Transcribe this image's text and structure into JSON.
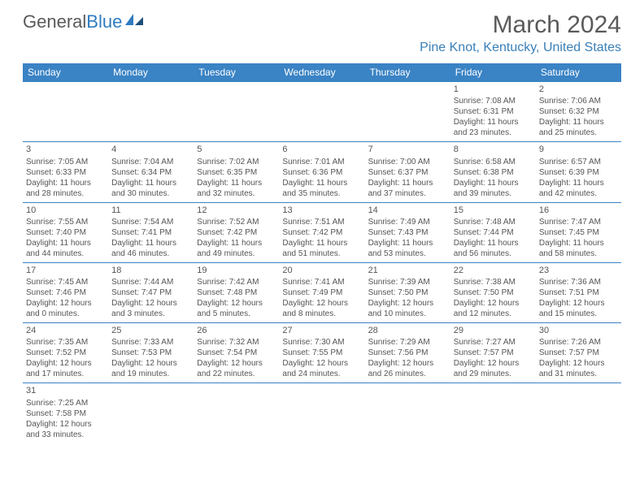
{
  "logo": {
    "text1": "General",
    "text2": "Blue"
  },
  "title": {
    "month": "March 2024",
    "location": "Pine Knot, Kentucky, United States"
  },
  "dow": [
    "Sunday",
    "Monday",
    "Tuesday",
    "Wednesday",
    "Thursday",
    "Friday",
    "Saturday"
  ],
  "colors": {
    "header_bg": "#3a83c4",
    "header_text": "#ffffff",
    "border": "#3a83c4",
    "body_text": "#555555",
    "accent": "#2f7bbf"
  },
  "weeks": [
    [
      null,
      null,
      null,
      null,
      null,
      {
        "d": "1",
        "sr": "Sunrise: 7:08 AM",
        "ss": "Sunset: 6:31 PM",
        "dl1": "Daylight: 11 hours",
        "dl2": "and 23 minutes."
      },
      {
        "d": "2",
        "sr": "Sunrise: 7:06 AM",
        "ss": "Sunset: 6:32 PM",
        "dl1": "Daylight: 11 hours",
        "dl2": "and 25 minutes."
      }
    ],
    [
      {
        "d": "3",
        "sr": "Sunrise: 7:05 AM",
        "ss": "Sunset: 6:33 PM",
        "dl1": "Daylight: 11 hours",
        "dl2": "and 28 minutes."
      },
      {
        "d": "4",
        "sr": "Sunrise: 7:04 AM",
        "ss": "Sunset: 6:34 PM",
        "dl1": "Daylight: 11 hours",
        "dl2": "and 30 minutes."
      },
      {
        "d": "5",
        "sr": "Sunrise: 7:02 AM",
        "ss": "Sunset: 6:35 PM",
        "dl1": "Daylight: 11 hours",
        "dl2": "and 32 minutes."
      },
      {
        "d": "6",
        "sr": "Sunrise: 7:01 AM",
        "ss": "Sunset: 6:36 PM",
        "dl1": "Daylight: 11 hours",
        "dl2": "and 35 minutes."
      },
      {
        "d": "7",
        "sr": "Sunrise: 7:00 AM",
        "ss": "Sunset: 6:37 PM",
        "dl1": "Daylight: 11 hours",
        "dl2": "and 37 minutes."
      },
      {
        "d": "8",
        "sr": "Sunrise: 6:58 AM",
        "ss": "Sunset: 6:38 PM",
        "dl1": "Daylight: 11 hours",
        "dl2": "and 39 minutes."
      },
      {
        "d": "9",
        "sr": "Sunrise: 6:57 AM",
        "ss": "Sunset: 6:39 PM",
        "dl1": "Daylight: 11 hours",
        "dl2": "and 42 minutes."
      }
    ],
    [
      {
        "d": "10",
        "sr": "Sunrise: 7:55 AM",
        "ss": "Sunset: 7:40 PM",
        "dl1": "Daylight: 11 hours",
        "dl2": "and 44 minutes."
      },
      {
        "d": "11",
        "sr": "Sunrise: 7:54 AM",
        "ss": "Sunset: 7:41 PM",
        "dl1": "Daylight: 11 hours",
        "dl2": "and 46 minutes."
      },
      {
        "d": "12",
        "sr": "Sunrise: 7:52 AM",
        "ss": "Sunset: 7:42 PM",
        "dl1": "Daylight: 11 hours",
        "dl2": "and 49 minutes."
      },
      {
        "d": "13",
        "sr": "Sunrise: 7:51 AM",
        "ss": "Sunset: 7:42 PM",
        "dl1": "Daylight: 11 hours",
        "dl2": "and 51 minutes."
      },
      {
        "d": "14",
        "sr": "Sunrise: 7:49 AM",
        "ss": "Sunset: 7:43 PM",
        "dl1": "Daylight: 11 hours",
        "dl2": "and 53 minutes."
      },
      {
        "d": "15",
        "sr": "Sunrise: 7:48 AM",
        "ss": "Sunset: 7:44 PM",
        "dl1": "Daylight: 11 hours",
        "dl2": "and 56 minutes."
      },
      {
        "d": "16",
        "sr": "Sunrise: 7:47 AM",
        "ss": "Sunset: 7:45 PM",
        "dl1": "Daylight: 11 hours",
        "dl2": "and 58 minutes."
      }
    ],
    [
      {
        "d": "17",
        "sr": "Sunrise: 7:45 AM",
        "ss": "Sunset: 7:46 PM",
        "dl1": "Daylight: 12 hours",
        "dl2": "and 0 minutes."
      },
      {
        "d": "18",
        "sr": "Sunrise: 7:44 AM",
        "ss": "Sunset: 7:47 PM",
        "dl1": "Daylight: 12 hours",
        "dl2": "and 3 minutes."
      },
      {
        "d": "19",
        "sr": "Sunrise: 7:42 AM",
        "ss": "Sunset: 7:48 PM",
        "dl1": "Daylight: 12 hours",
        "dl2": "and 5 minutes."
      },
      {
        "d": "20",
        "sr": "Sunrise: 7:41 AM",
        "ss": "Sunset: 7:49 PM",
        "dl1": "Daylight: 12 hours",
        "dl2": "and 8 minutes."
      },
      {
        "d": "21",
        "sr": "Sunrise: 7:39 AM",
        "ss": "Sunset: 7:50 PM",
        "dl1": "Daylight: 12 hours",
        "dl2": "and 10 minutes."
      },
      {
        "d": "22",
        "sr": "Sunrise: 7:38 AM",
        "ss": "Sunset: 7:50 PM",
        "dl1": "Daylight: 12 hours",
        "dl2": "and 12 minutes."
      },
      {
        "d": "23",
        "sr": "Sunrise: 7:36 AM",
        "ss": "Sunset: 7:51 PM",
        "dl1": "Daylight: 12 hours",
        "dl2": "and 15 minutes."
      }
    ],
    [
      {
        "d": "24",
        "sr": "Sunrise: 7:35 AM",
        "ss": "Sunset: 7:52 PM",
        "dl1": "Daylight: 12 hours",
        "dl2": "and 17 minutes."
      },
      {
        "d": "25",
        "sr": "Sunrise: 7:33 AM",
        "ss": "Sunset: 7:53 PM",
        "dl1": "Daylight: 12 hours",
        "dl2": "and 19 minutes."
      },
      {
        "d": "26",
        "sr": "Sunrise: 7:32 AM",
        "ss": "Sunset: 7:54 PM",
        "dl1": "Daylight: 12 hours",
        "dl2": "and 22 minutes."
      },
      {
        "d": "27",
        "sr": "Sunrise: 7:30 AM",
        "ss": "Sunset: 7:55 PM",
        "dl1": "Daylight: 12 hours",
        "dl2": "and 24 minutes."
      },
      {
        "d": "28",
        "sr": "Sunrise: 7:29 AM",
        "ss": "Sunset: 7:56 PM",
        "dl1": "Daylight: 12 hours",
        "dl2": "and 26 minutes."
      },
      {
        "d": "29",
        "sr": "Sunrise: 7:27 AM",
        "ss": "Sunset: 7:57 PM",
        "dl1": "Daylight: 12 hours",
        "dl2": "and 29 minutes."
      },
      {
        "d": "30",
        "sr": "Sunrise: 7:26 AM",
        "ss": "Sunset: 7:57 PM",
        "dl1": "Daylight: 12 hours",
        "dl2": "and 31 minutes."
      }
    ],
    [
      {
        "d": "31",
        "sr": "Sunrise: 7:25 AM",
        "ss": "Sunset: 7:58 PM",
        "dl1": "Daylight: 12 hours",
        "dl2": "and 33 minutes."
      },
      null,
      null,
      null,
      null,
      null,
      null
    ]
  ]
}
